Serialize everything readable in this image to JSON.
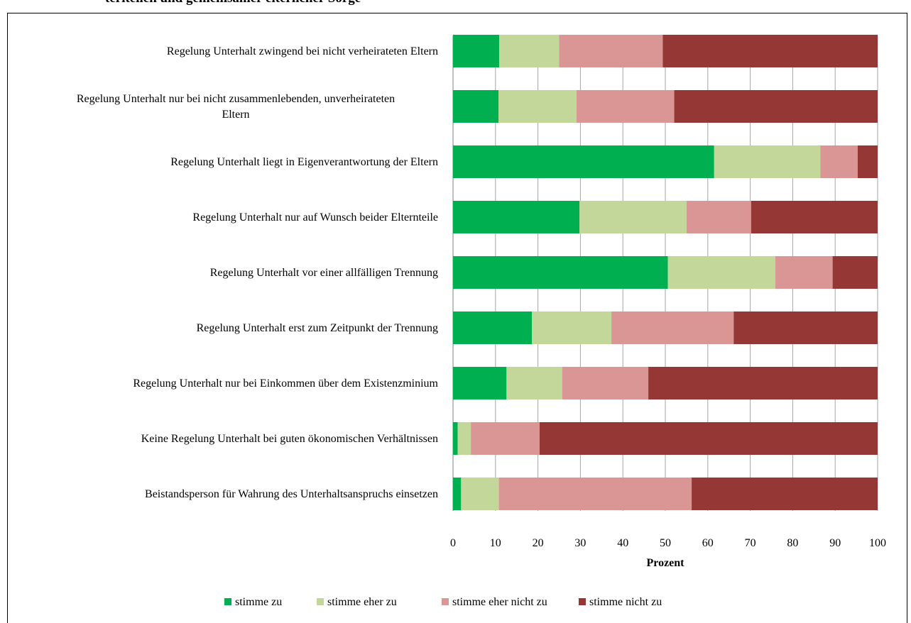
{
  "page_title": "teritellen und gemeinsamer elterlicher Sorge",
  "chart_data": {
    "type": "bar",
    "orientation": "horizontal",
    "stacked": true,
    "categories": [
      [
        "Regelung Unterhalt zwingend bei nicht verheirateten Eltern"
      ],
      [
        "Regelung Unterhalt nur bei nicht zusammenlebenden, unverheirateten",
        "Eltern"
      ],
      [
        "Regelung Unterhalt liegt in Eigenverantwortung der Eltern"
      ],
      [
        "Regelung Unterhalt nur auf Wunsch beider Elternteile"
      ],
      [
        "Regelung Unterhalt vor einer allfälligen Trennung"
      ],
      [
        "Regelung Unterhalt erst zum Zeitpunkt der Trennung"
      ],
      [
        "Regelung Unterhalt nur bei Einkommen über dem Existenzminium"
      ],
      [
        "Keine Regelung Unterhalt  bei guten ökonomischen Verhältnissen"
      ],
      [
        "Beistandsperson für Wahrung des Unterhaltsanspruchs einsetzen"
      ]
    ],
    "series": [
      {
        "name": "stimme zu",
        "color": "#00b050",
        "values": [
          10.9,
          10.7,
          61.5,
          29.8,
          50.6,
          18.6,
          12.6,
          1.1,
          1.9
        ]
      },
      {
        "name": "stimme eher zu",
        "color": "#c4d79b",
        "values": [
          14.1,
          18.4,
          25.0,
          25.2,
          25.3,
          18.7,
          13.1,
          3.1,
          8.9
        ]
      },
      {
        "name": "stimme eher nicht zu",
        "color": "#da9694",
        "values": [
          24.4,
          23.0,
          8.8,
          15.2,
          13.5,
          28.8,
          20.3,
          16.2,
          45.4
        ]
      },
      {
        "name": "stimme nicht zu",
        "color": "#953735",
        "values": [
          50.6,
          47.9,
          4.7,
          29.8,
          10.6,
          33.9,
          54.0,
          79.6,
          43.8
        ]
      }
    ],
    "xlabel": "Prozent",
    "xlim": [
      0,
      100
    ],
    "xticks": [
      0,
      10,
      20,
      30,
      40,
      50,
      60,
      70,
      80,
      90,
      100
    ],
    "grid": "vertical",
    "legend": "bottom"
  }
}
